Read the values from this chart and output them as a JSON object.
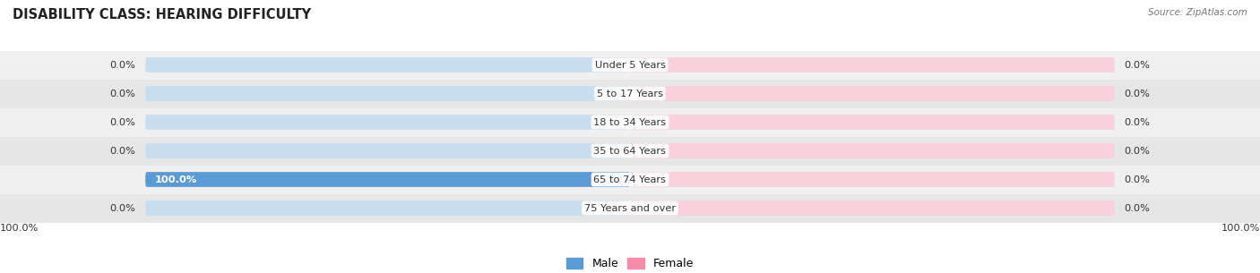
{
  "title": "DISABILITY CLASS: HEARING DIFFICULTY",
  "source": "Source: ZipAtlas.com",
  "categories": [
    "Under 5 Years",
    "5 to 17 Years",
    "18 to 34 Years",
    "35 to 64 Years",
    "65 to 74 Years",
    "75 Years and over"
  ],
  "male_values": [
    0.0,
    0.0,
    0.0,
    0.0,
    100.0,
    0.0
  ],
  "female_values": [
    0.0,
    0.0,
    0.0,
    0.0,
    0.0,
    0.0
  ],
  "male_bg_color": "#c8ddf0",
  "male_full_color": "#5b9bd5",
  "female_bg_color": "#f9d0dc",
  "female_full_color": "#f48caa",
  "row_bg_even": "#f0f0f0",
  "row_bg_odd": "#e6e6e6",
  "label_color": "#333333",
  "title_color": "#222222",
  "max_value": 100.0,
  "bar_height": 0.52,
  "figsize": [
    14.06,
    3.05
  ],
  "dpi": 100
}
